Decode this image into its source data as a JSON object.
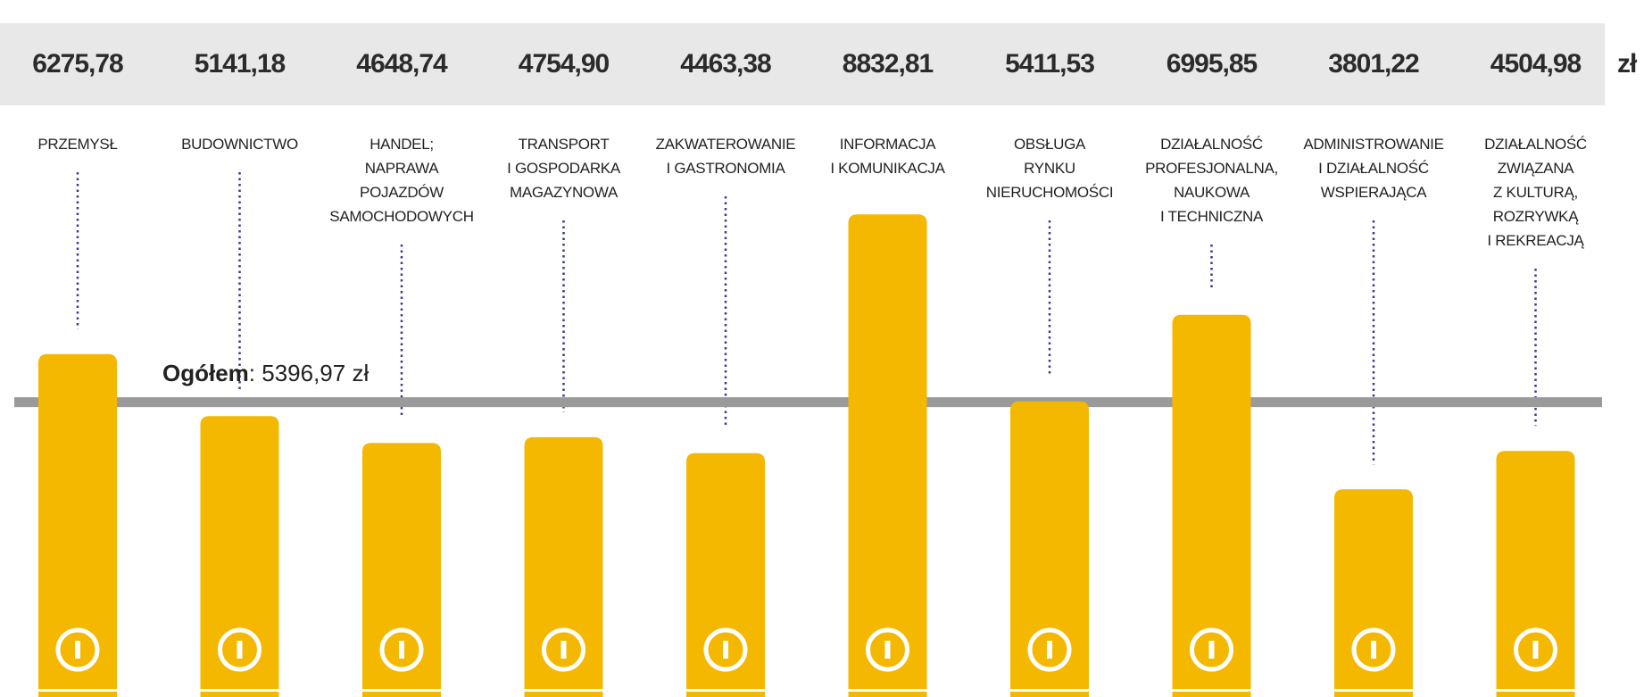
{
  "chart_data": {
    "type": "bar",
    "categories": [
      "PRZEMYSŁ",
      "BUDOWNICTWO",
      "HANDEL;\nNAPRAWA\nPOJAZDÓW\nSAMOCHODOWYCH",
      "TRANSPORT\nI GOSPODARKA\nMAGAZYNOWA",
      "ZAKWATEROWANIE\nI GASTRONOMIA",
      "INFORMACJA\nI KOMUNIKACJA",
      "OBSŁUGA\nRYNKU\nNIERUCHOMOŚCI",
      "DZIAŁALNOŚĆ\nPROFESJONALNA,\nNAUKOWA\nI TECHNICZNA",
      "ADMINISTROWANIE\nI DZIAŁALNOŚĆ\nWSPIERAJĄCA",
      "DZIAŁALNOŚĆ\nZWIĄZANA\nZ KULTURĄ,\nROZRYWKĄ\nI REKREACJĄ"
    ],
    "values": [
      6275.78,
      5141.18,
      4648.74,
      4754.9,
      4463.38,
      8832.81,
      5411.53,
      6995.85,
      3801.22,
      4504.98
    ],
    "value_labels": [
      "6275,78",
      "5141,18",
      "4648,74",
      "4754,90",
      "4463,38",
      "8832,81",
      "5411,53",
      "6995,85",
      "3801,22",
      "4504,98"
    ],
    "unit": "zł",
    "color": "#f5b800",
    "ylim": [
      0,
      9000
    ],
    "total_label": "Ogółem",
    "total_value": 5396.97,
    "total_value_label": ": 5396,97 zł"
  }
}
